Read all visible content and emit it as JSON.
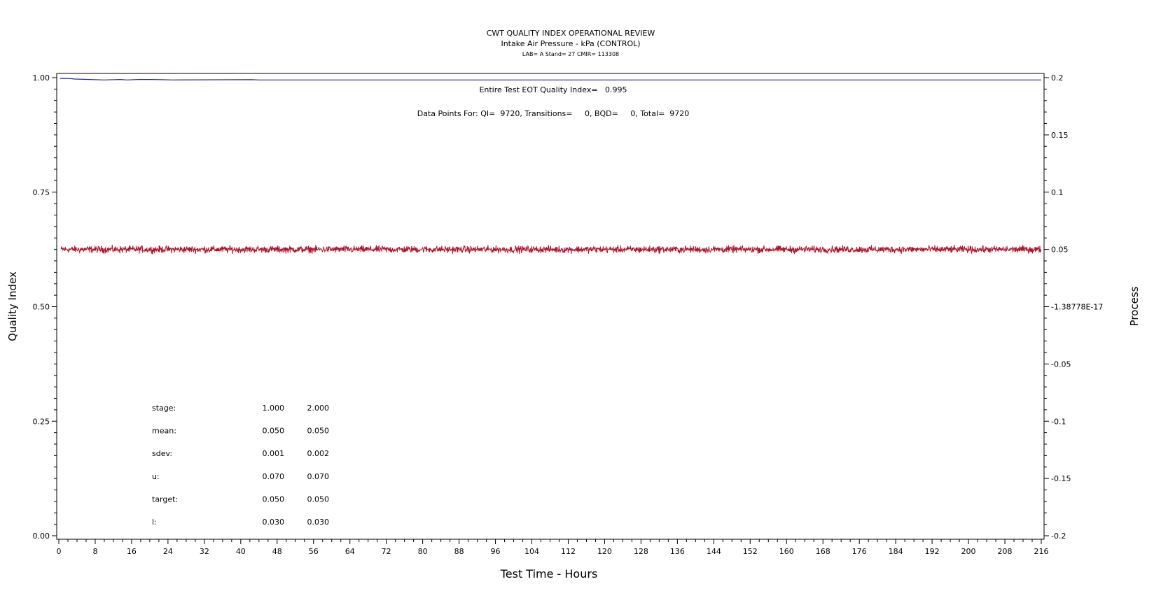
{
  "chart_data": {
    "type": "line",
    "title": "CWT QUALITY INDEX OPERATIONAL REVIEW",
    "subtitle": "Intake Air Pressure - kPa (CONTROL)",
    "subtitle2": "LAB= A Stand= 27 CMIR= 113308",
    "xlabel": "Test Time - Hours",
    "ylabel": "Quality Index",
    "y2label": "Process",
    "xlim": [
      0,
      216
    ],
    "ylim": [
      0,
      1
    ],
    "y2lim": [
      -0.2,
      0.2
    ],
    "x_ticks": [
      "0",
      "8",
      "16",
      "24",
      "32",
      "40",
      "48",
      "56",
      "64",
      "72",
      "80",
      "88",
      "96",
      "104",
      "112",
      "120",
      "128",
      "136",
      "144",
      "152",
      "160",
      "168",
      "176",
      "184",
      "192",
      "200",
      "208",
      "216"
    ],
    "y_ticks": [
      "0.00",
      "0.25",
      "0.50",
      "0.75",
      "1.00"
    ],
    "y2_ticks": [
      "-0.2",
      "-0.15",
      "-0.1",
      "-0.05",
      "-1.38778E-17",
      "0.05",
      "0.1",
      "0.15",
      "0.2"
    ],
    "annotations": {
      "qi_text": "Entire Test EOT Quality Index=   0.995",
      "points_text": "Data Points For: QI=  9720, Transitions=     0, BQD=     0, Total=  9720"
    },
    "stats": [
      {
        "label": "stage:",
        "v1": "1.000",
        "v2": "2.000"
      },
      {
        "label": "mean:",
        "v1": "0.050",
        "v2": "0.050"
      },
      {
        "label": "sdev:",
        "v1": "0.001",
        "v2": "0.002"
      },
      {
        "label": "u:",
        "v1": "0.070",
        "v2": "0.070"
      },
      {
        "label": "target:",
        "v1": "0.050",
        "v2": "0.050"
      },
      {
        "label": "l:",
        "v1": "0.030",
        "v2": "0.030"
      }
    ],
    "series": [
      {
        "color": "#1f1fa0",
        "axis": "left",
        "x": [
          0.3,
          2.5,
          3.5,
          10,
          13.5,
          15,
          17.5,
          20,
          22.5,
          25,
          42.5,
          44,
          216
        ],
        "y": [
          0.9985,
          0.998,
          0.997,
          0.995,
          0.996,
          0.995,
          0.996,
          0.996,
          0.9955,
          0.995,
          0.9955,
          0.995,
          0.995
        ]
      },
      {
        "color": "#b0102a",
        "axis": "right",
        "mean": 0.05,
        "noise_sdev": 0.0015,
        "xlim": [
          0.5,
          216
        ]
      }
    ]
  }
}
